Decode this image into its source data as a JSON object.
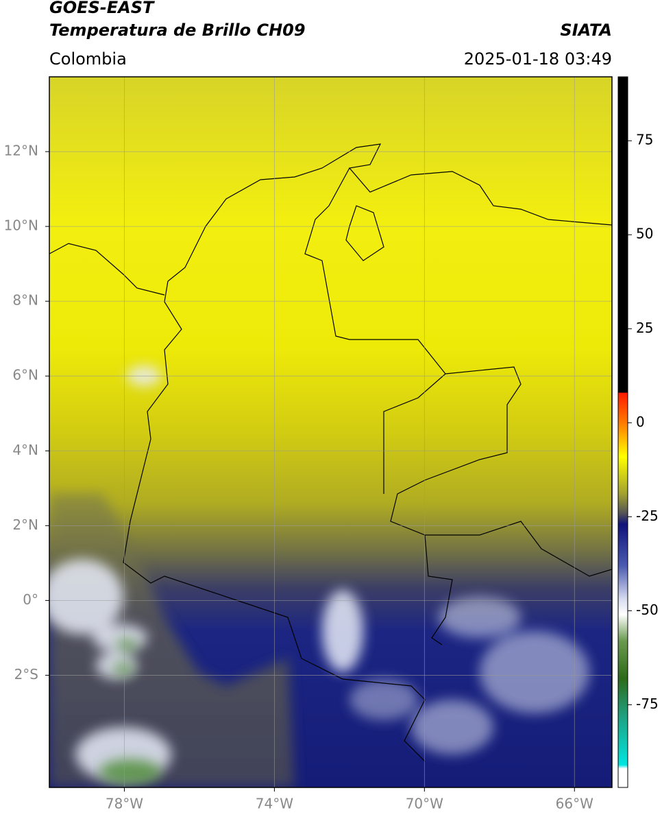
{
  "header": {
    "title": "GOES-EAST",
    "subtitle": "Temperatura de Brillo CH09",
    "source": "SIATA",
    "region": "Colombia",
    "timestamp": "2025-01-18 03:49"
  },
  "map": {
    "lonlim": [
      -80,
      -65
    ],
    "latlim": [
      -5,
      14
    ],
    "grid": true,
    "lonticks": [
      {
        "value": -78,
        "label": "78°W"
      },
      {
        "value": -74,
        "label": "74°W"
      },
      {
        "value": -70,
        "label": "70°W"
      },
      {
        "value": -66,
        "label": "66°W"
      }
    ],
    "latticks": [
      {
        "value": 12,
        "label": "12°N"
      },
      {
        "value": 10,
        "label": "10°N"
      },
      {
        "value": 8,
        "label": "8°N"
      },
      {
        "value": 6,
        "label": "6°N"
      },
      {
        "value": 4,
        "label": "4°N"
      },
      {
        "value": 2,
        "label": "2°N"
      },
      {
        "value": 0,
        "label": "0°"
      },
      {
        "value": -2,
        "label": "2°S"
      }
    ]
  },
  "colorbar": {
    "lim": [
      -97,
      92
    ],
    "ticks": [
      75,
      50,
      25,
      0,
      -25,
      -50,
      -75
    ],
    "stops": [
      {
        "value": 92,
        "color": "#000000"
      },
      {
        "value": 8,
        "color": "#000000"
      },
      {
        "value": 8,
        "color": "#ff1a00"
      },
      {
        "value": 0,
        "color": "#ff7a00"
      },
      {
        "value": -9,
        "color": "#ffff00"
      },
      {
        "value": -19,
        "color": "#a0a030"
      },
      {
        "value": -24,
        "color": "#555555"
      },
      {
        "value": -27,
        "color": "#10127a"
      },
      {
        "value": -38,
        "color": "#4a5ab0"
      },
      {
        "value": -47,
        "color": "#d8dcf0"
      },
      {
        "value": -51,
        "color": "#ffffff"
      },
      {
        "value": -58,
        "color": "#6a9a50"
      },
      {
        "value": -68,
        "color": "#2e6a1a"
      },
      {
        "value": -78,
        "color": "#20a080"
      },
      {
        "value": -91,
        "color": "#00e5e0"
      },
      {
        "value": -92,
        "color": "#ffffff"
      },
      {
        "value": -97,
        "color": "#ffffff"
      }
    ]
  }
}
